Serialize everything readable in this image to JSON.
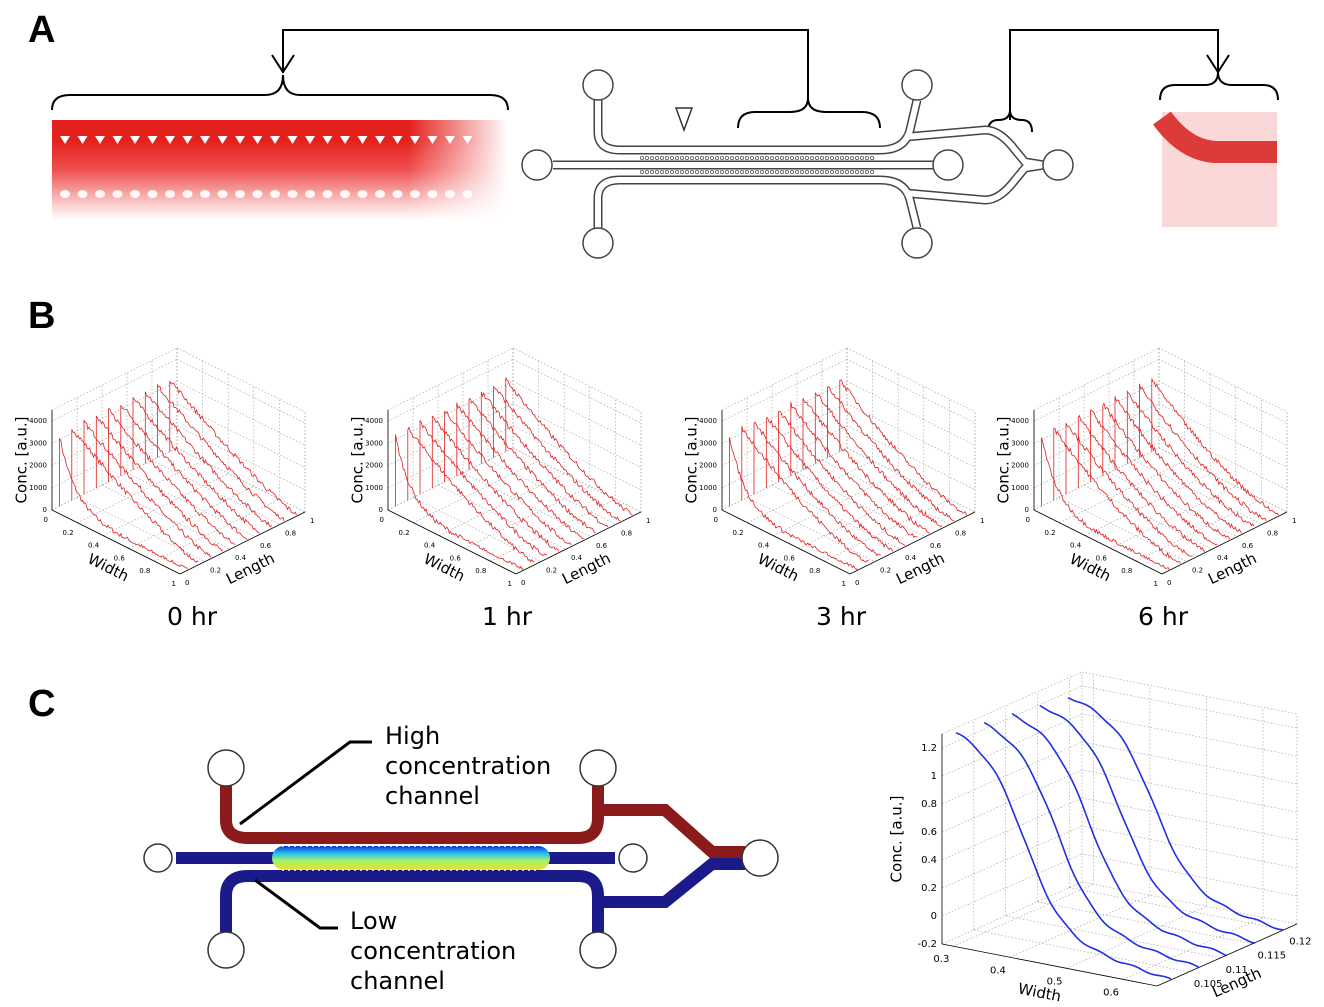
{
  "panel_a": {
    "label": "A"
  },
  "panel_b": {
    "label": "B",
    "z_label": "Conc. [a.u.]",
    "x_label": "Width",
    "y_label": "Length",
    "z_ticks": [
      0,
      1000,
      2000,
      3000,
      4000
    ],
    "x_ticks": [
      0,
      0.2,
      0.4,
      0.6,
      0.8,
      1
    ],
    "y_ticks": [
      0,
      0.2,
      0.4,
      0.6,
      0.8,
      1
    ],
    "times": [
      "0 hr",
      "1 hr",
      "3 hr",
      "6 hr"
    ]
  },
  "panel_c": {
    "label": "C",
    "high_label": [
      "High",
      "concentration",
      "channel"
    ],
    "low_label": [
      "Low",
      "concentration",
      "channel"
    ],
    "z_label": "Conc. [a.u.]",
    "x_label": "Width",
    "y_label": "Length",
    "z_ticks": [
      -0.2,
      0,
      0.2,
      0.4,
      0.6,
      0.8,
      1,
      1.2
    ],
    "x_ticks": [
      0.3,
      0.4,
      0.5,
      0.6
    ],
    "y_ticks": [
      0.105,
      0.11,
      0.115,
      0.12
    ]
  }
}
